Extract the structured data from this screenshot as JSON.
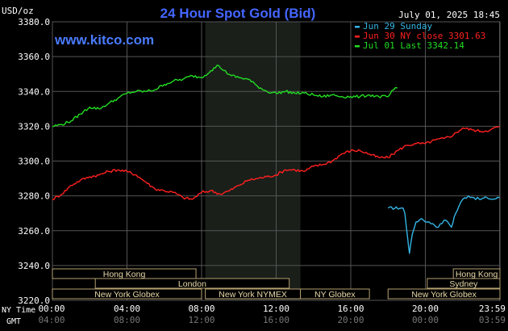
{
  "header": {
    "unit": "USD/oz",
    "title": "24 Hour Spot Gold (Bid)",
    "datetime": "July 01, 2025 18:45",
    "watermark": "www.kitco.com"
  },
  "legend": [
    {
      "label": "Jun 29 Sunday",
      "color": "#33b5e5"
    },
    {
      "label": "Jun 30 NY close 3301.63",
      "color": "#ff2020"
    },
    {
      "label": "Jul 01 Last 3342.14",
      "color": "#22dd22"
    }
  ],
  "axis": {
    "ny_time_label": "NY Time",
    "gmt_label": "GMT"
  },
  "sessions": [
    {
      "label": "Hong Kong",
      "start": 0,
      "end": 7.7
    },
    {
      "label": "Hong Kong",
      "start": 21.5,
      "end": 24
    },
    {
      "label": "London",
      "start": 2.3,
      "end": 12.7
    },
    {
      "label": "Sydney",
      "start": 20.1,
      "end": 24
    },
    {
      "label": "New York Globex",
      "start": 0,
      "end": 8.0
    },
    {
      "label": "New York NYMEX",
      "start": 8.2,
      "end": 13.3
    },
    {
      "label": "NY Globex",
      "start": 13.3,
      "end": 17.0
    },
    {
      "label": "New York Globex",
      "start": 18.0,
      "end": 24
    }
  ],
  "chart_data": {
    "type": "line",
    "title": "24 Hour Spot Gold (Bid)",
    "ylabel": "USD/oz",
    "ylim": [
      3220,
      3380
    ],
    "xlim": [
      0,
      24
    ],
    "yticks": [
      "3380.0",
      "3360.0",
      "3340.0",
      "3320.0",
      "3300.0",
      "3280.0",
      "3260.0",
      "3240.0",
      "3220.0"
    ],
    "ytick_values": [
      3380,
      3360,
      3340,
      3320,
      3300,
      3280,
      3260,
      3240,
      3220
    ],
    "xticks_ny": [
      "00:00",
      "04:00",
      "08:00",
      "12:00",
      "16:00",
      "20:00",
      "23:59"
    ],
    "xticks_gmt": [
      "04:00",
      "08:00",
      "12:00",
      "16:00",
      "20:00",
      "00:00",
      "03:59"
    ],
    "xtick_values": [
      0,
      4,
      8,
      12,
      16,
      20,
      23.98
    ],
    "nymex_shade": [
      8.2,
      13.3
    ],
    "grid": true,
    "series": [
      {
        "name": "Jun 29 Sunday",
        "color": "#33b5e5",
        "x": [
          18.0,
          18.8,
          18.9,
          19.05,
          19.15,
          19.3,
          19.5,
          19.8,
          20.1,
          20.4,
          20.7,
          21.0,
          21.2,
          21.4,
          21.55,
          21.8,
          22.0,
          22.3,
          22.6,
          22.9,
          23.3,
          23.6,
          23.98
        ],
        "values": [
          3273,
          3273,
          3270,
          3256,
          3247,
          3258,
          3265,
          3267,
          3265,
          3264,
          3262,
          3266,
          3265,
          3262,
          3268,
          3274,
          3278,
          3280,
          3279,
          3278,
          3279,
          3278,
          3279
        ]
      },
      {
        "name": "Jun 30 NY close 3301.63",
        "color": "#ff2020",
        "x": [
          0,
          0.5,
          1.0,
          1.5,
          2.0,
          2.5,
          3.0,
          3.5,
          4.0,
          4.5,
          5.0,
          5.5,
          6.0,
          6.5,
          7.0,
          7.5,
          8.0,
          8.5,
          9.0,
          9.5,
          10.0,
          10.5,
          11.0,
          11.5,
          12.0,
          12.5,
          13.0,
          13.5,
          14.0,
          14.5,
          15.0,
          15.5,
          16.0,
          16.5,
          17.0,
          17.5,
          18.0,
          18.5,
          19.0,
          19.5,
          20.0,
          20.5,
          21.0,
          21.5,
          22.0,
          22.5,
          23.0,
          23.5,
          23.98
        ],
        "values": [
          3278,
          3281,
          3286,
          3289,
          3291,
          3292,
          3294,
          3295,
          3294,
          3292,
          3288,
          3284,
          3283,
          3282,
          3279,
          3278,
          3282,
          3283,
          3281,
          3283,
          3286,
          3289,
          3290,
          3291,
          3292,
          3295,
          3295,
          3294,
          3297,
          3298,
          3300,
          3304,
          3306,
          3306,
          3304,
          3302,
          3302,
          3306,
          3309,
          3310,
          3310,
          3312,
          3313,
          3315,
          3319,
          3318,
          3317,
          3318,
          3320
        ]
      },
      {
        "name": "Jul 01 Last 3342.14",
        "color": "#22dd22",
        "x": [
          0,
          0.5,
          1.0,
          1.5,
          2.0,
          2.5,
          3.0,
          3.5,
          4.0,
          4.5,
          5.0,
          5.5,
          6.0,
          6.5,
          7.0,
          7.5,
          8.0,
          8.5,
          8.9,
          9.2,
          9.6,
          10.0,
          10.5,
          11.0,
          11.5,
          12.0,
          12.5,
          13.0,
          13.5,
          14.0,
          14.5,
          15.0,
          15.5,
          16.0,
          16.5,
          17.0,
          17.5,
          18.0,
          18.3,
          18.5
        ],
        "values": [
          3320,
          3321,
          3323,
          3327,
          3331,
          3330,
          3333,
          3336,
          3339,
          3340,
          3340,
          3341,
          3344,
          3346,
          3347,
          3349,
          3348,
          3352,
          3355,
          3352,
          3349,
          3348,
          3347,
          3343,
          3340,
          3339,
          3340,
          3339,
          3339,
          3338,
          3337,
          3338,
          3337,
          3337,
          3337,
          3338,
          3337,
          3337,
          3341,
          3342
        ]
      }
    ]
  }
}
